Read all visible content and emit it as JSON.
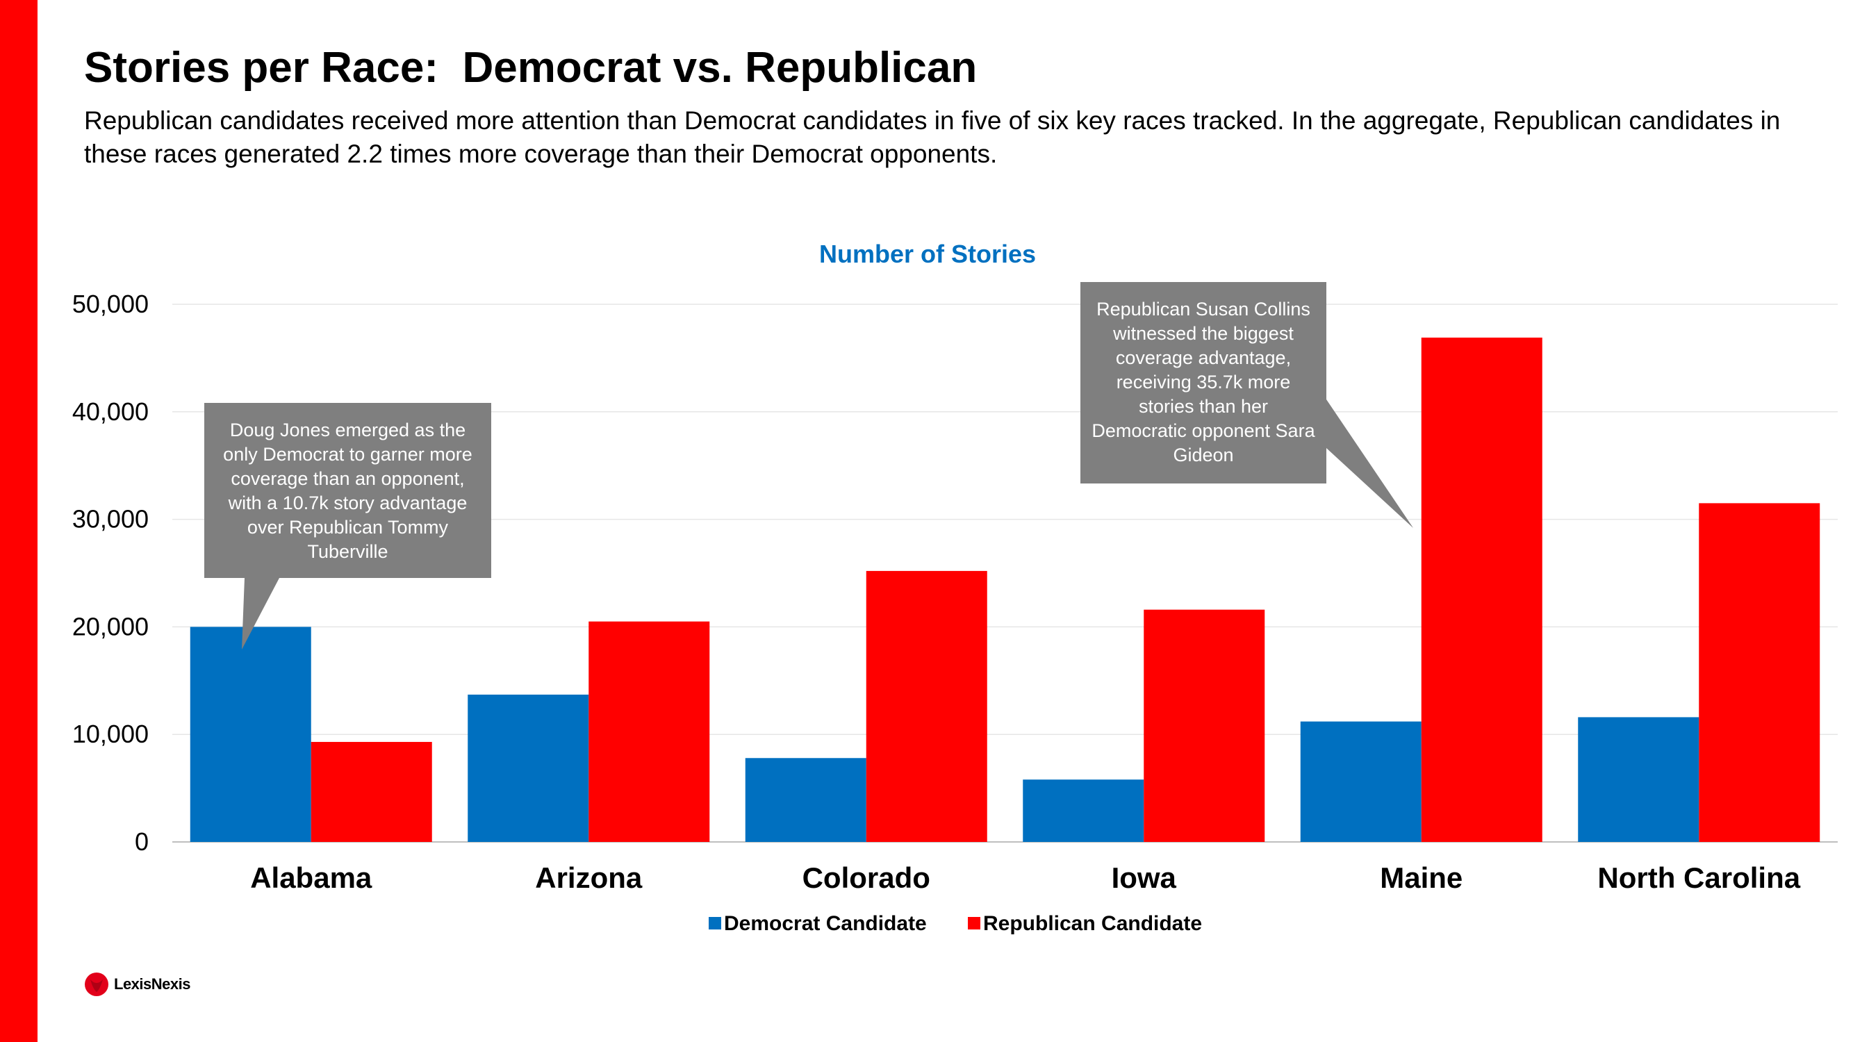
{
  "slide": {
    "title": "Stories per Race:  Democrat vs. Republican",
    "subtitle": "Republican candidates received more attention than Democrat candidates in five of six key races tracked. In the aggregate, Republican candidates in these races generated 2.2 times more coverage than their Democrat opponents."
  },
  "callouts": {
    "alabama": "Doug Jones emerged as the only Democrat to garner more coverage than an opponent, with a 10.7k story advantage over Republican Tommy Tuberville",
    "maine": "Republican Susan Collins witnessed the biggest coverage advantage, receiving 35.7k more stories than her Democratic opponent Sara Gideon"
  },
  "logo": {
    "text": "LexisNexis",
    "mark": "lexisnexis-logo-icon"
  },
  "colors": {
    "democrat": "#0070c0",
    "republican": "#ff0000",
    "title_blue": "#0070c0",
    "accent_bar": "#ff0000",
    "callout_bg": "#7f7f7f"
  },
  "chart_data": {
    "type": "bar",
    "title": "Number of Stories",
    "categories": [
      "Alabama",
      "Arizona",
      "Colorado",
      "Iowa",
      "Maine",
      "North Carolina"
    ],
    "series": [
      {
        "name": "Democrat Candidate",
        "color": "#0070c0",
        "values": [
          20000,
          13700,
          7800,
          5800,
          11200,
          11600
        ]
      },
      {
        "name": "Republican Candidate",
        "color": "#ff0000",
        "values": [
          9300,
          20500,
          25200,
          21600,
          46900,
          31500
        ]
      }
    ],
    "ylim": [
      0,
      50000
    ],
    "yticks": [
      "0",
      "10,000",
      "20,000",
      "30,000",
      "40,000",
      "50,000"
    ],
    "xlabel": "",
    "ylabel": "",
    "grid": true,
    "legend": "bottom"
  }
}
